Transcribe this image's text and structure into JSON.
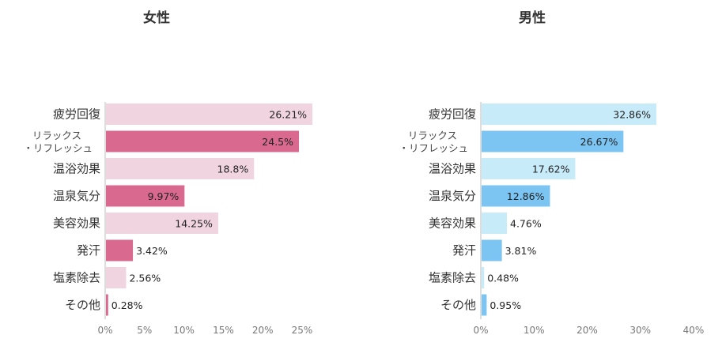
{
  "chart_data": [
    {
      "type": "bar",
      "orientation": "horizontal",
      "title": "女性",
      "categories": [
        "疲労回復",
        "リラックス・リフレッシュ",
        "温浴効果",
        "温泉気分",
        "美容効果",
        "発汗",
        "塩素除去",
        "その他"
      ],
      "category_lines": [
        [
          "疲労回復"
        ],
        [
          "リラックス",
          "・リフレッシュ"
        ],
        [
          "温浴効果"
        ],
        [
          "温泉気分"
        ],
        [
          "美容効果"
        ],
        [
          "発汗"
        ],
        [
          "塩素除去"
        ],
        [
          "その他"
        ]
      ],
      "values": [
        26.21,
        24.5,
        18.8,
        9.97,
        14.25,
        3.42,
        2.56,
        0.28
      ],
      "value_labels": [
        "26.21%",
        "24.5%",
        "18.8%",
        "9.97%",
        "14.25%",
        "3.42%",
        "2.56%",
        "0.28%"
      ],
      "xlim": [
        0,
        25
      ],
      "xticks": [
        0,
        5,
        10,
        15,
        20,
        25
      ],
      "xtick_labels": [
        "0%",
        "5%",
        "10%",
        "15%",
        "20%",
        "25%"
      ],
      "bar_colors": [
        "#f0d4e0",
        "#d9698f",
        "#f0d4e0",
        "#d9698f",
        "#f0d4e0",
        "#d9698f",
        "#f0d4e0",
        "#d9698f"
      ]
    },
    {
      "type": "bar",
      "orientation": "horizontal",
      "title": "男性",
      "categories": [
        "疲労回復",
        "リラックス・リフレッシュ",
        "温浴効果",
        "温泉気分",
        "美容効果",
        "発汗",
        "塩素除去",
        "その他"
      ],
      "category_lines": [
        [
          "疲労回復"
        ],
        [
          "リラックス",
          "・リフレッシュ"
        ],
        [
          "温浴効果"
        ],
        [
          "温泉気分"
        ],
        [
          "美容効果"
        ],
        [
          "発汗"
        ],
        [
          "塩素除去"
        ],
        [
          "その他"
        ]
      ],
      "values": [
        32.86,
        26.67,
        17.62,
        12.86,
        4.76,
        3.81,
        0.48,
        0.95
      ],
      "value_labels": [
        "32.86%",
        "26.67%",
        "17.62%",
        "12.86%",
        "4.76%",
        "3.81%",
        "0.48%",
        "0.95%"
      ],
      "xlim": [
        0,
        40
      ],
      "xticks": [
        0,
        10,
        20,
        30,
        40
      ],
      "xtick_labels": [
        "0%",
        "10%",
        "20%",
        "30%",
        "40%"
      ],
      "bar_colors": [
        "#c8ebf9",
        "#7cc4f2",
        "#c8ebf9",
        "#7cc4f2",
        "#c8ebf9",
        "#7cc4f2",
        "#c8ebf9",
        "#7cc4f2"
      ]
    }
  ]
}
